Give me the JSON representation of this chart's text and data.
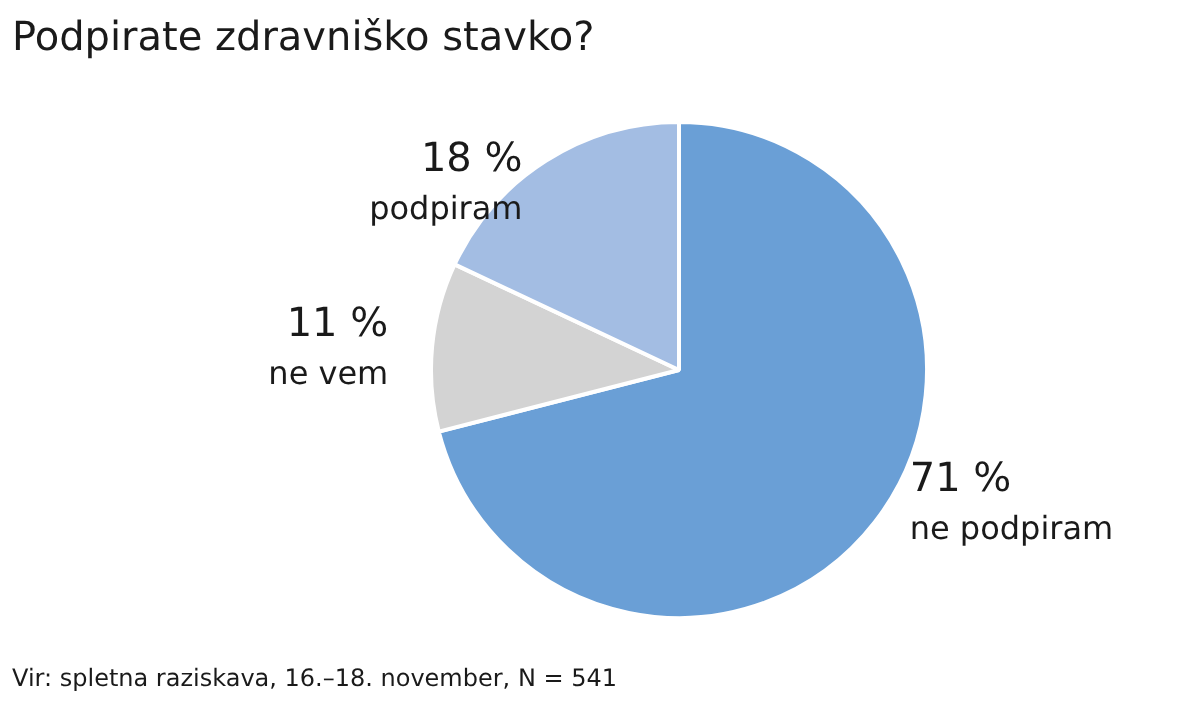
{
  "chart_data": {
    "type": "pie",
    "title": "Podpirate zdravniško stavko?",
    "categories": [
      "ne podpiram",
      "ne vem",
      "podpiram"
    ],
    "values": [
      71,
      11,
      18
    ],
    "value_labels": [
      "71 %",
      "11 %",
      "18 %"
    ],
    "colors": [
      "#6a9fd6",
      "#d3d3d3",
      "#a3bde3"
    ],
    "legend": false,
    "annotations": [
      "Vir: spletna raziskava, 16.–18. november, N = 541"
    ]
  }
}
